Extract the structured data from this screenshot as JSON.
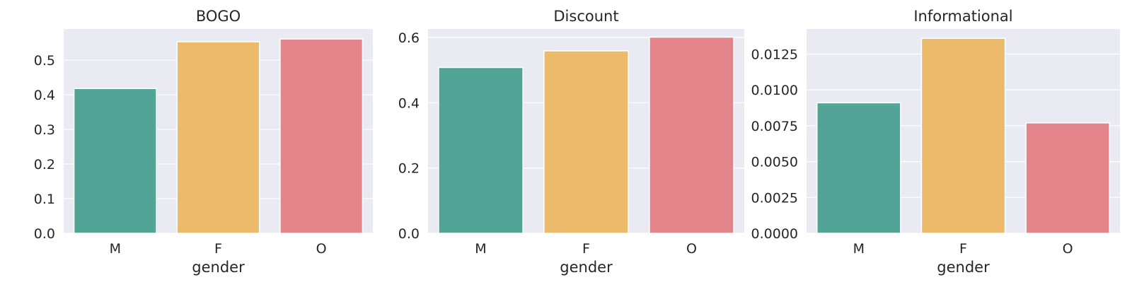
{
  "chart_data": [
    {
      "type": "bar",
      "title": "BOGO",
      "xlabel": "gender",
      "ylabel": "",
      "categories": [
        "M",
        "F",
        "O"
      ],
      "values": [
        0.418,
        0.553,
        0.561
      ],
      "colors": [
        "#52a596",
        "#ebba6b",
        "#e28489"
      ],
      "ylim": [
        0,
        0.59
      ],
      "yticks": [
        0.0,
        0.1,
        0.2,
        0.3,
        0.4,
        0.5
      ],
      "ytick_labels": [
        "0.0",
        "0.1",
        "0.2",
        "0.3",
        "0.4",
        "0.5"
      ],
      "grid": true
    },
    {
      "type": "bar",
      "title": "Discount",
      "xlabel": "gender",
      "ylabel": "",
      "categories": [
        "M",
        "F",
        "O"
      ],
      "values": [
        0.508,
        0.559,
        0.601
      ],
      "colors": [
        "#52a596",
        "#ebba6b",
        "#e28489"
      ],
      "ylim": [
        0,
        0.626
      ],
      "yticks": [
        0.0,
        0.2,
        0.4,
        0.6
      ],
      "ytick_labels": [
        "0.0",
        "0.2",
        "0.4",
        "0.6"
      ],
      "grid": true
    },
    {
      "type": "bar",
      "title": "Informational",
      "xlabel": "gender",
      "ylabel": "",
      "categories": [
        "M",
        "F",
        "O"
      ],
      "values": [
        0.0091,
        0.0136,
        0.0077
      ],
      "colors": [
        "#52a596",
        "#ebba6b",
        "#e28489"
      ],
      "ylim": [
        0,
        0.01425
      ],
      "yticks": [
        0.0,
        0.0025,
        0.005,
        0.0075,
        0.01,
        0.0125
      ],
      "ytick_labels": [
        "0.0000",
        "0.0025",
        "0.0050",
        "0.0075",
        "0.0100",
        "0.0125"
      ],
      "grid": true
    }
  ]
}
